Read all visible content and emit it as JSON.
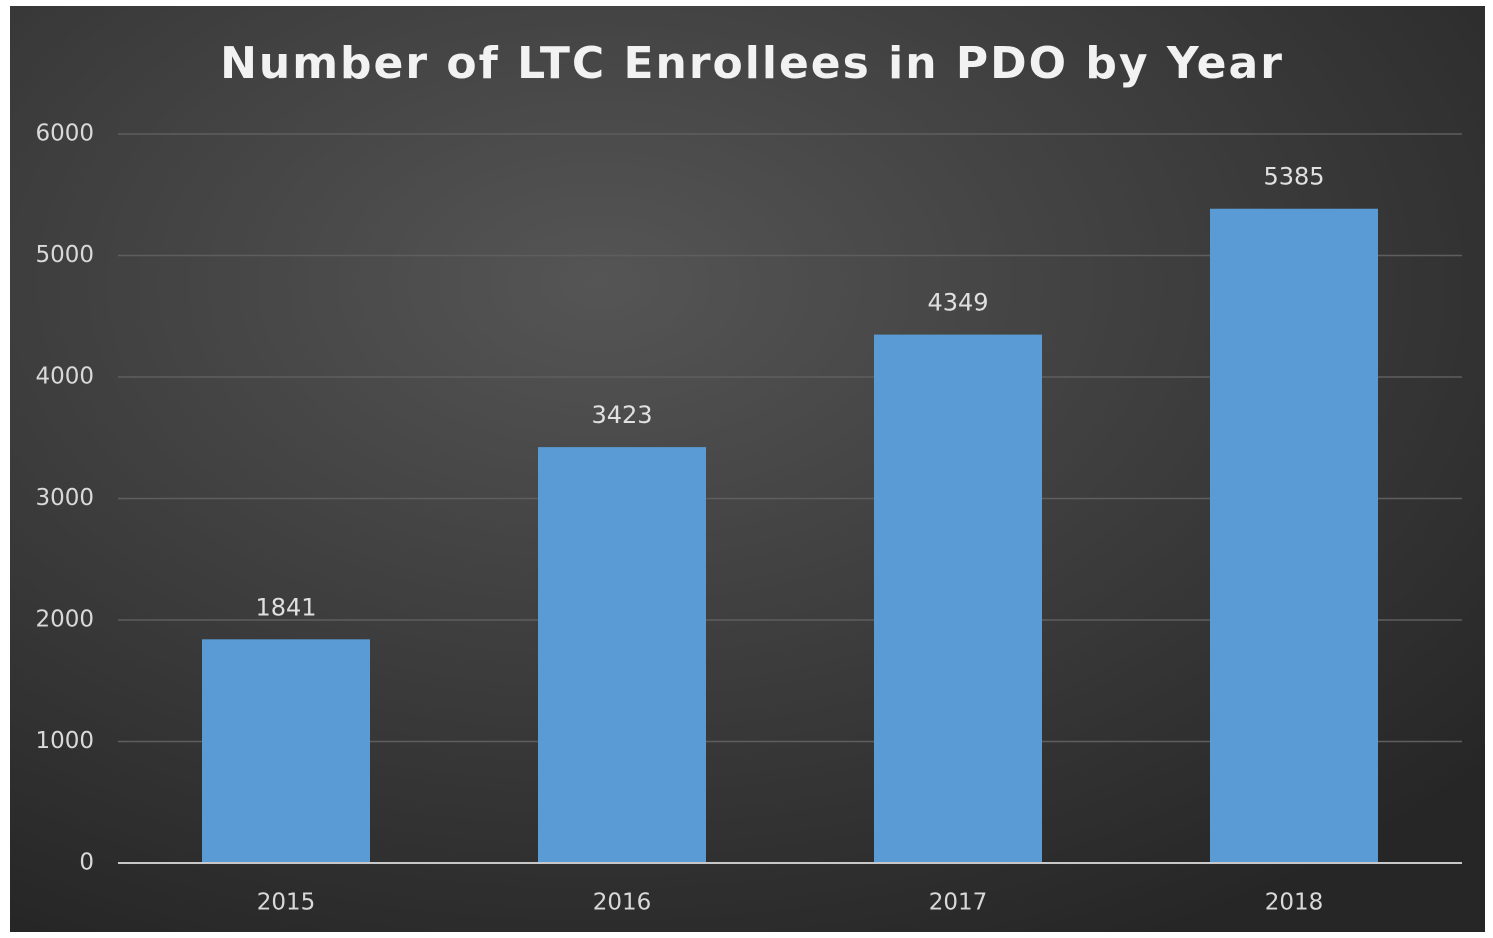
{
  "chart_data": {
    "type": "bar",
    "title": "Number of LTC Enrollees in PDO by Year",
    "categories": [
      "2015",
      "2016",
      "2017",
      "2018"
    ],
    "values": [
      1841,
      3423,
      4349,
      5385
    ],
    "color": "#5b9bd5",
    "ylim": [
      0,
      6000
    ],
    "yticks": [
      0,
      1000,
      2000,
      3000,
      4000,
      5000,
      6000
    ],
    "grid": true
  }
}
